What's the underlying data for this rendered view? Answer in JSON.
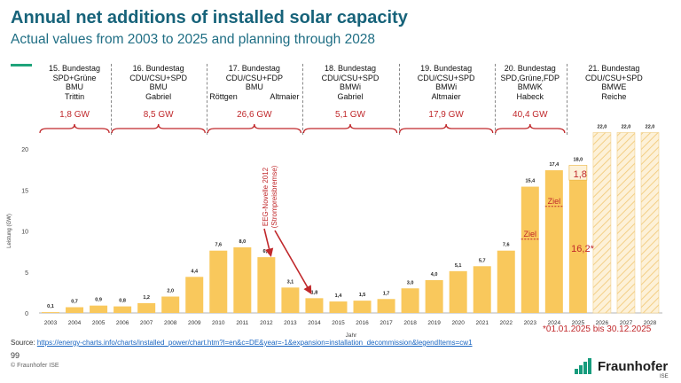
{
  "title": "Annual net additions of installed solar capacity",
  "subtitle": "Actual values from 2003 to 2025 and planning through 2028",
  "colors": {
    "title": "#17637a",
    "bar": "#f9c85c",
    "bar_stroke": "#e9b23a",
    "accent": "#c0282b",
    "logo_green": "#179c7d"
  },
  "governments": [
    {
      "lines": [
        "15. Bundestag",
        "SPD+Grüne",
        "BMU",
        "Trittin"
      ],
      "gw": "1,8 GW"
    },
    {
      "lines": [
        "16. Bundestag",
        "CDU/CSU+SPD",
        "BMU",
        "Gabriel"
      ],
      "gw": "8,5 GW"
    },
    {
      "lines": [
        "17. Bundestag",
        "CDU/CSU+FDP",
        "BMU"
      ],
      "names": [
        "Röttgen",
        "Altmaier"
      ],
      "gw": "26,6 GW"
    },
    {
      "lines": [
        "18. Bundestag",
        "CDU/CSU+SPD",
        "BMWi",
        "Gabriel"
      ],
      "gw": "5,1 GW"
    },
    {
      "lines": [
        "19. Bundestag",
        "CDU/CSU+SPD",
        "BMWi",
        "Altmaier"
      ],
      "gw": "17,9 GW"
    },
    {
      "lines": [
        "20. Bundestag",
        "SPD,Grüne,FDP",
        "BMWK",
        "Habeck"
      ],
      "gw": "40,4 GW"
    },
    {
      "lines": [
        "21. Bundestag",
        "CDU/CSU+SPD",
        "BMWE",
        "Reiche"
      ],
      "gw": ""
    }
  ],
  "chart_data": {
    "type": "bar",
    "ylabel": "Leistung (GW)",
    "xlabel": "Jahr",
    "ylim": [
      0,
      22
    ],
    "yticks": [
      0,
      5,
      10,
      15,
      20
    ],
    "categories": [
      "2003",
      "2004",
      "2005",
      "2006",
      "2007",
      "2008",
      "2009",
      "2010",
      "2011",
      "2012",
      "2013",
      "2014",
      "2015",
      "2016",
      "2017",
      "2018",
      "2019",
      "2020",
      "2021",
      "2022",
      "2023",
      "2024",
      "2025",
      "2026",
      "2027",
      "2028"
    ],
    "values": [
      0.1,
      0.7,
      0.9,
      0.8,
      1.2,
      2.0,
      4.4,
      7.6,
      8.0,
      6.8,
      3.1,
      1.8,
      1.4,
      1.5,
      1.7,
      3.0,
      4.0,
      5.1,
      5.7,
      7.6,
      15.4,
      17.4,
      18.0,
      22.0,
      22.0,
      22.0
    ],
    "labels": [
      "0,1",
      "0,7",
      "0,9",
      "0,8",
      "1,2",
      "2,0",
      "4,4",
      "7,6",
      "8,0",
      "6,8",
      "3,1",
      "1,8",
      "1,4",
      "1,5",
      "1,7",
      "3,0",
      "4,0",
      "5,1",
      "5,7",
      "7,6",
      "15,4",
      "17,4",
      "18,0",
      "22,0",
      "22,0",
      "22,0"
    ],
    "planned_years": [
      "2026",
      "2027",
      "2028"
    ],
    "current_year_2025": {
      "actual": 16.2,
      "actual_label": "16,2*",
      "remaining": 1.8,
      "remaining_label": "1,8"
    },
    "targets": [
      {
        "year": "2023",
        "value": 9.0,
        "label": "Ziel"
      },
      {
        "year": "2024",
        "value": 13.0,
        "label": "Ziel"
      }
    ],
    "annotation": {
      "line1": "EEG-Novelle 2012",
      "line2": "(Strompreisbremse)",
      "pointing_to": [
        "2012",
        "2014"
      ]
    },
    "footnote": "*01.01.2025 bis 30.12.2025",
    "grid": false
  },
  "footer": {
    "source_label": "Source:",
    "source_link": "https://energy-charts.info/charts/installed_power/chart.htm?l=en&c=DE&year=-1&expansion=installation_decommission&legendItems=cw1",
    "page_number": "99",
    "copyright": "© Fraunhofer ISE",
    "logo_text": "Fraunhofer",
    "logo_sub": "ISE"
  }
}
